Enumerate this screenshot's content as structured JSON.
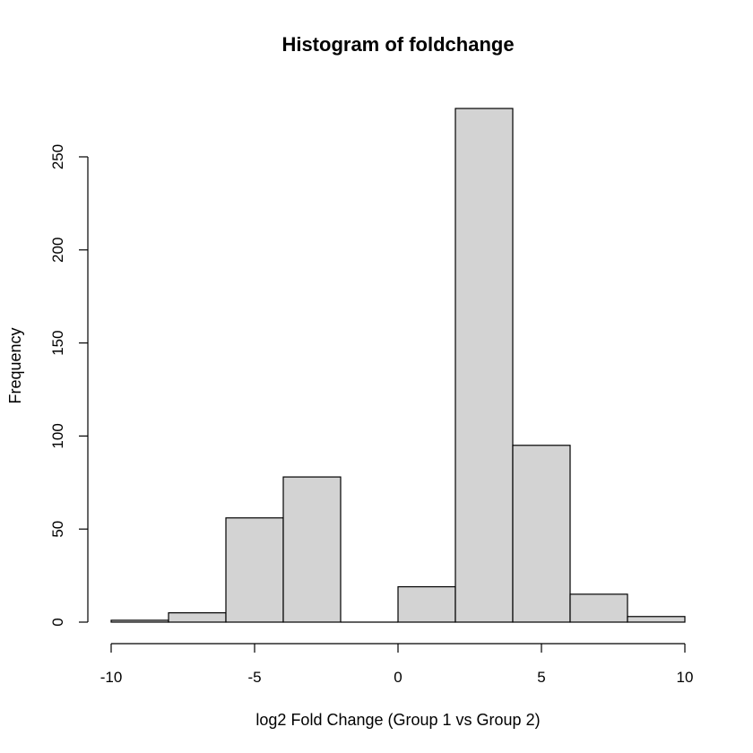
{
  "chart_data": {
    "type": "bar",
    "title": "Histogram of foldchange",
    "xlabel": "log2 Fold Change (Group 1 vs Group 2)",
    "ylabel": "Frequency",
    "bins": [
      {
        "x0": -10,
        "x1": -8,
        "count": 1
      },
      {
        "x0": -8,
        "x1": -6,
        "count": 5
      },
      {
        "x0": -6,
        "x1": -4,
        "count": 56
      },
      {
        "x0": -4,
        "x1": -2,
        "count": 78
      },
      {
        "x0": -2,
        "x1": 0,
        "count": 0
      },
      {
        "x0": 0,
        "x1": 2,
        "count": 19
      },
      {
        "x0": 2,
        "x1": 4,
        "count": 276
      },
      {
        "x0": 4,
        "x1": 6,
        "count": 95
      },
      {
        "x0": 6,
        "x1": 8,
        "count": 15
      },
      {
        "x0": 8,
        "x1": 10,
        "count": 3
      }
    ],
    "xlim": [
      -10,
      10
    ],
    "ylim": [
      0,
      276
    ],
    "x_ticks": [
      -10,
      -5,
      0,
      5,
      10
    ],
    "y_ticks": [
      0,
      50,
      100,
      150,
      200,
      250
    ],
    "grid": false,
    "colors": {
      "bar_fill": "#d3d3d3",
      "bar_stroke": "#000000"
    }
  }
}
